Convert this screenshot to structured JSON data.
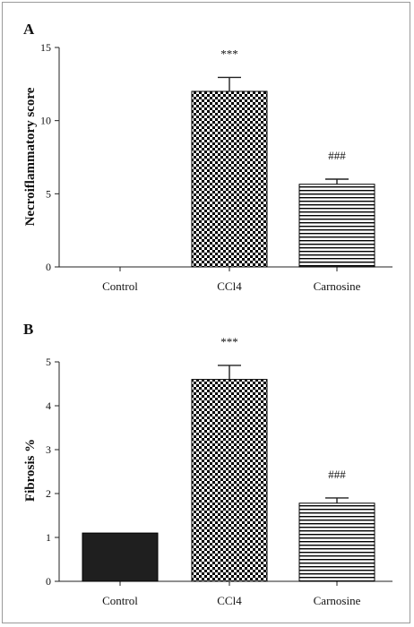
{
  "colors": {
    "axis": "#222222",
    "bar_solid": "#1f1f1f",
    "pattern": "#000000"
  },
  "chart_data": [
    {
      "panel": "A",
      "type": "bar",
      "title": "",
      "xlabel": "",
      "ylabel": "Necroiflammatory score",
      "ylim": [
        0,
        15
      ],
      "yticks": [
        "0",
        "5",
        "10",
        "15"
      ],
      "categories": [
        "Control",
        "CCl4",
        "Carnosine"
      ],
      "values": [
        0,
        12.0,
        5.65
      ],
      "errors": [
        0,
        0.95,
        0.35
      ],
      "patterns": [
        "solid",
        "checker",
        "hlines"
      ],
      "annotations": [
        "",
        "***",
        "###"
      ],
      "grid": false,
      "legend": "none"
    },
    {
      "panel": "B",
      "type": "bar",
      "title": "",
      "xlabel": "",
      "ylabel": "Fibrosis %",
      "ylim": [
        0,
        5
      ],
      "yticks": [
        "0",
        "1",
        "2",
        "3",
        "4",
        "5"
      ],
      "categories": [
        "Control",
        "CCl4",
        "Carnosine"
      ],
      "values": [
        1.1,
        4.6,
        1.78
      ],
      "errors": [
        0,
        0.32,
        0.12
      ],
      "patterns": [
        "solid",
        "checker",
        "hlines"
      ],
      "annotations": [
        "",
        "***",
        "###"
      ],
      "grid": false,
      "legend": "none"
    }
  ]
}
